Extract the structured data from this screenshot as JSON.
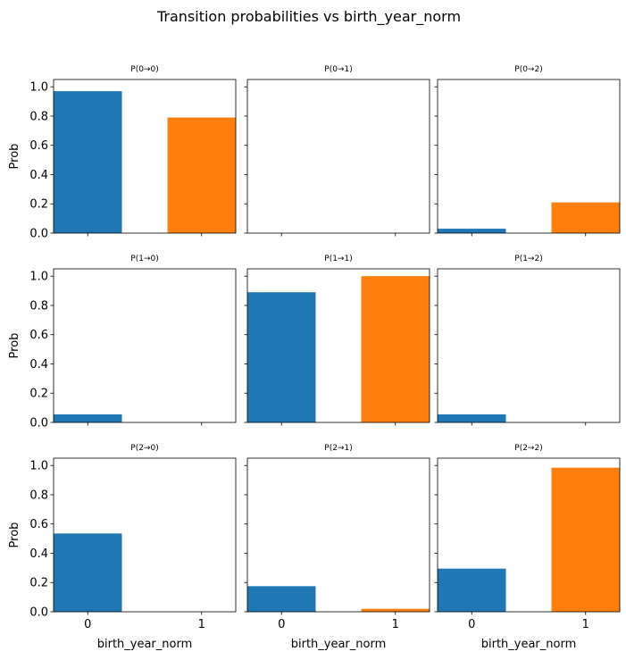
{
  "figure": {
    "suptitle": "Transition probabilities vs birth_year_norm"
  },
  "colors": {
    "category_0": "#1f77b4",
    "category_1": "#ff7f0e",
    "axes_edge": "#000000",
    "background": "#ffffff"
  },
  "chart_data": {
    "type": "bar",
    "layout": "3x3 grid, shared x and y axes",
    "categories": [
      "0",
      "1"
    ],
    "xlabel": "birth_year_norm",
    "ylabel": "Prob",
    "ylim": [
      0,
      1.05
    ],
    "yticks": [
      "0.0",
      "0.2",
      "0.4",
      "0.6",
      "0.8",
      "1.0"
    ],
    "grid": false,
    "legend": "none",
    "panels": [
      {
        "title": "P(0→0)",
        "values": [
          0.97,
          0.79
        ]
      },
      {
        "title": "P(0→1)",
        "values": [
          0.0,
          0.0
        ]
      },
      {
        "title": "P(0→2)",
        "values": [
          0.03,
          0.21
        ]
      },
      {
        "title": "P(1→0)",
        "values": [
          0.055,
          0.0
        ]
      },
      {
        "title": "P(1→1)",
        "values": [
          0.89,
          1.0
        ]
      },
      {
        "title": "P(1→2)",
        "values": [
          0.055,
          0.0
        ]
      },
      {
        "title": "P(2→0)",
        "values": [
          0.535,
          0.0
        ]
      },
      {
        "title": "P(2→1)",
        "values": [
          0.175,
          0.02
        ]
      },
      {
        "title": "P(2→2)",
        "values": [
          0.295,
          0.985
        ]
      }
    ]
  }
}
